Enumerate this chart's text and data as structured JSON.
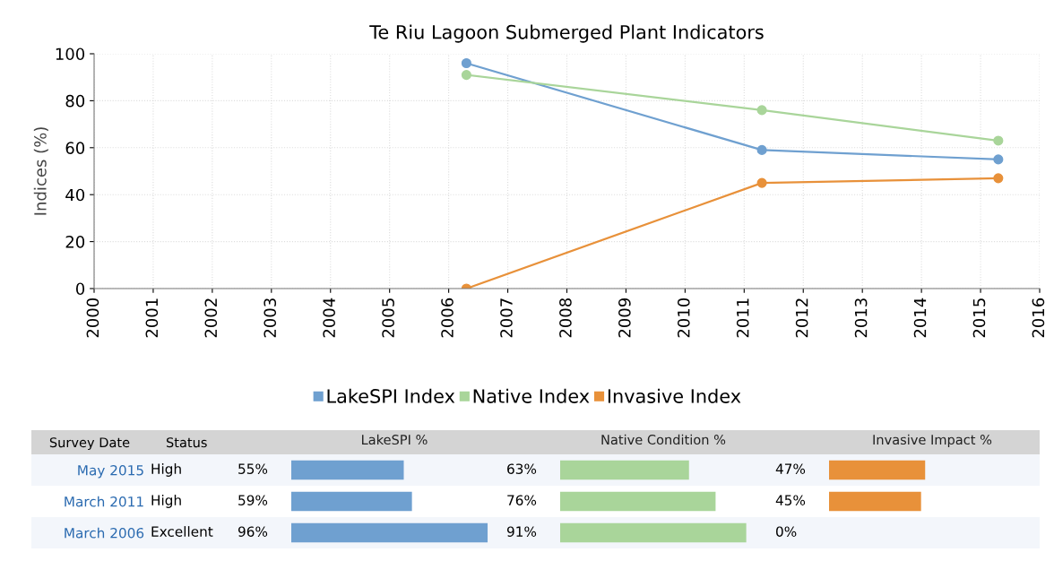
{
  "chart_data": [
    {
      "type": "line",
      "title": "Te Riu Lagoon Submerged Plant Indicators",
      "ylabel": "Indices (%)",
      "xlim": [
        2000,
        2016
      ],
      "xticks": [
        2000,
        2001,
        2002,
        2003,
        2004,
        2005,
        2006,
        2007,
        2008,
        2009,
        2010,
        2011,
        2012,
        2013,
        2014,
        2015,
        2016
      ],
      "ylim": [
        0,
        100
      ],
      "yticks": [
        0,
        20,
        40,
        60,
        80,
        100
      ],
      "grid": true,
      "legend": "bottom",
      "marker": "circle",
      "line_style": "solid",
      "series": [
        {
          "name": "LakeSPI Index",
          "color": "#6fa0d0",
          "x": [
            2006.3,
            2011.3,
            2015.3
          ],
          "values": [
            96,
            59,
            55
          ]
        },
        {
          "name": "Native Index",
          "color": "#a9d59a",
          "x": [
            2006.3,
            2011.3,
            2015.3
          ],
          "values": [
            91,
            76,
            63
          ]
        },
        {
          "name": "Invasive Index",
          "color": "#e8913a",
          "x": [
            2006.3,
            2011.3,
            2015.3
          ],
          "values": [
            0,
            45,
            47
          ]
        }
      ]
    },
    {
      "type": "bar",
      "orientation": "horizontal",
      "title": "LakeSPI %",
      "categories": [
        "May 2015",
        "March 2011",
        "March 2006"
      ],
      "values": [
        55,
        59,
        96
      ],
      "value_labels": [
        "55%",
        "59%",
        "96%"
      ],
      "color": "#6fa0d0",
      "tick_labels": "y",
      "annotations": [
        "Survey Date",
        "Status",
        "High",
        "High",
        "Excellent"
      ]
    },
    {
      "type": "bar",
      "orientation": "horizontal",
      "title": "Native Condition %",
      "categories": [
        null,
        null,
        null
      ],
      "values": [
        63,
        76,
        91
      ],
      "value_labels": [
        "63%",
        "76%",
        "91%"
      ],
      "color": "#a9d59a",
      "tick_labels": false
    },
    {
      "type": "bar",
      "orientation": "horizontal",
      "title": "Invasive Impact %",
      "categories": [
        null,
        null,
        null
      ],
      "values": [
        47,
        45,
        0
      ],
      "value_labels": [
        "47%",
        "45%",
        "0%"
      ],
      "color": "#e8913a",
      "tick_labels": false
    }
  ]
}
